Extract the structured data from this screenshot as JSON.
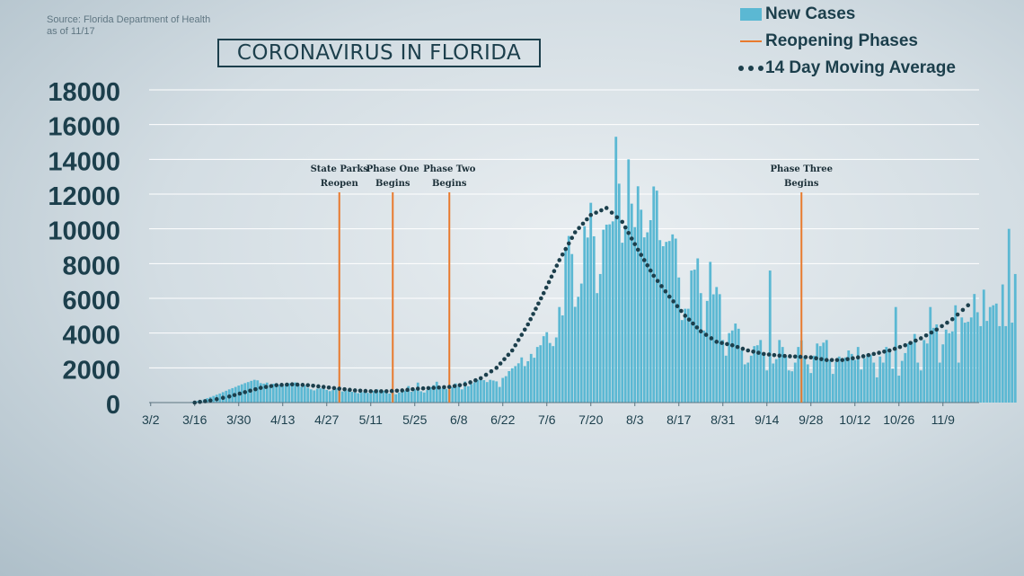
{
  "source": {
    "line1": "Source: Florida Department of Health",
    "line2": "as of 11/17"
  },
  "title": "CORONAVIRUS IN FLORIDA",
  "legend": {
    "new_cases": "New Cases",
    "reopening": "Reopening Phases",
    "moving_avg": "14 Day Moving Average"
  },
  "colors": {
    "bars": "#5bb8d3",
    "phase_lines": "#e87a2e",
    "avg_dots": "#1c3f4c",
    "text": "#1c3f4c",
    "grid": "#ffffff"
  },
  "chart_data": {
    "type": "bar",
    "title": "CORONAVIRUS IN FLORIDA",
    "xlabel": "",
    "ylabel": "",
    "ylim": [
      0,
      18000
    ],
    "yticks": [
      0,
      2000,
      4000,
      6000,
      8000,
      10000,
      12000,
      14000,
      16000,
      18000
    ],
    "x_start": "3/2",
    "x_ticks": [
      "3/2",
      "3/16",
      "3/30",
      "4/13",
      "4/27",
      "5/11",
      "5/25",
      "6/8",
      "6/22",
      "7/6",
      "7/20",
      "8/3",
      "8/17",
      "8/31",
      "9/14",
      "9/28",
      "10/12",
      "10/26",
      "11/9"
    ],
    "grid": true,
    "legend_position": "top-right",
    "series": [
      {
        "name": "New Cases",
        "type": "bar",
        "start": "3/2",
        "values": [
          0,
          0,
          0,
          0,
          0,
          0,
          0,
          0,
          0,
          0,
          0,
          10,
          20,
          40,
          60,
          90,
          130,
          180,
          250,
          320,
          380,
          450,
          520,
          600,
          680,
          760,
          830,
          900,
          980,
          1050,
          1120,
          1180,
          1250,
          1310,
          1280,
          1120,
          1090,
          1150,
          1000,
          1080,
          1120,
          1020,
          950,
          1080,
          1110,
          1000,
          1160,
          1050,
          900,
          980,
          850,
          760,
          700,
          800,
          820,
          940,
          730,
          660,
          720,
          810,
          900,
          640,
          700,
          720,
          620,
          580,
          540,
          600,
          620,
          560,
          520,
          670,
          760,
          700,
          680,
          610,
          520,
          640,
          480,
          580,
          730,
          690,
          950,
          620,
          760,
          1150,
          650,
          580,
          720,
          890,
          1000,
          1200,
          820,
          840,
          790,
          730,
          880,
          1100,
          950,
          760,
          1210,
          940,
          1060,
          1170,
          1310,
          1380,
          1290,
          1180,
          1310,
          1270,
          1220,
          900,
          1420,
          1520,
          1810,
          1980,
          2100,
          2260,
          2600,
          2100,
          2380,
          2800,
          2580,
          3200,
          3300,
          3820,
          4050,
          3430,
          3250,
          3750,
          5500,
          5020,
          8940,
          9590,
          8550,
          5510,
          6090,
          6850,
          10150,
          9500,
          11500,
          9570,
          6300,
          7400,
          9950,
          10240,
          10260,
          10430,
          15300,
          12600,
          9200,
          10200,
          14000,
          11450,
          10100,
          12450,
          11100,
          9510,
          9800,
          10500,
          12440,
          12200,
          9350,
          9000,
          9250,
          9300,
          9680,
          9440,
          7200,
          4750,
          5400,
          5400,
          7600,
          7650,
          8300,
          6300,
          4150,
          5850,
          8100,
          6230,
          6650,
          6240,
          3600,
          2700,
          4000,
          4150,
          4550,
          4250,
          3000,
          2200,
          2300,
          2700,
          3250,
          3300,
          3600,
          2750,
          1850,
          7600,
          2250,
          2500,
          3600,
          3200,
          2650,
          1850,
          1800,
          2300,
          3200,
          3580,
          2600,
          2200,
          1700,
          2700,
          3400,
          3250,
          3450,
          3600,
          2450,
          1650,
          2350,
          2650,
          2550,
          2600,
          3000,
          2800,
          2450,
          3200,
          1900,
          2550,
          2800,
          2750,
          2300,
          1450,
          2650,
          2300,
          3200,
          2900,
          1950,
          5500,
          1550,
          2400,
          2850,
          3400,
          3500,
          3950,
          2300,
          1850,
          3600,
          3400,
          5500,
          4300,
          4500,
          2300,
          3350,
          4200,
          4000,
          4100,
          5600,
          2300,
          4900,
          4600,
          4650,
          4900,
          6250,
          5200,
          4400,
          6500,
          4700,
          5500,
          5600,
          5700,
          4400,
          6800,
          4400,
          10000,
          4600,
          7400
        ]
      },
      {
        "name": "14 Day Moving Average",
        "type": "dotted-line",
        "points": [
          [
            "3/16",
            0
          ],
          [
            "3/21",
            120
          ],
          [
            "3/27",
            350
          ],
          [
            "4/1",
            600
          ],
          [
            "4/6",
            850
          ],
          [
            "4/11",
            1000
          ],
          [
            "4/16",
            1050
          ],
          [
            "4/21",
            1000
          ],
          [
            "4/26",
            900
          ],
          [
            "5/1",
            800
          ],
          [
            "5/6",
            700
          ],
          [
            "5/11",
            650
          ],
          [
            "5/16",
            650
          ],
          [
            "5/21",
            700
          ],
          [
            "5/26",
            800
          ],
          [
            "5/31",
            850
          ],
          [
            "6/5",
            900
          ],
          [
            "6/10",
            1050
          ],
          [
            "6/15",
            1400
          ],
          [
            "6/20",
            2000
          ],
          [
            "6/25",
            3000
          ],
          [
            "6/30",
            4500
          ],
          [
            "7/5",
            6300
          ],
          [
            "7/10",
            8200
          ],
          [
            "7/15",
            9800
          ],
          [
            "7/20",
            10800
          ],
          [
            "7/25",
            11200
          ],
          [
            "7/30",
            10400
          ],
          [
            "8/4",
            8800
          ],
          [
            "8/9",
            7300
          ],
          [
            "8/14",
            6100
          ],
          [
            "8/19",
            5000
          ],
          [
            "8/24",
            4100
          ],
          [
            "8/29",
            3500
          ],
          [
            "9/3",
            3300
          ],
          [
            "9/8",
            3000
          ],
          [
            "9/13",
            2800
          ],
          [
            "9/18",
            2700
          ],
          [
            "9/23",
            2650
          ],
          [
            "9/28",
            2600
          ],
          [
            "10/3",
            2450
          ],
          [
            "10/8",
            2450
          ],
          [
            "10/13",
            2600
          ],
          [
            "10/18",
            2800
          ],
          [
            "10/23",
            3000
          ],
          [
            "10/28",
            3300
          ],
          [
            "11/2",
            3700
          ],
          [
            "11/7",
            4200
          ],
          [
            "11/12",
            4800
          ],
          [
            "11/17",
            5600
          ]
        ]
      }
    ],
    "phases": [
      {
        "date": "5/1",
        "label": [
          "State Parks",
          "Reopen"
        ]
      },
      {
        "date": "5/18",
        "label": [
          "Phase One",
          "Begins"
        ]
      },
      {
        "date": "6/5",
        "label": [
          "Phase Two",
          "Begins"
        ]
      },
      {
        "date": "9/25",
        "label": [
          "Phase Three",
          "Begins"
        ]
      }
    ]
  }
}
